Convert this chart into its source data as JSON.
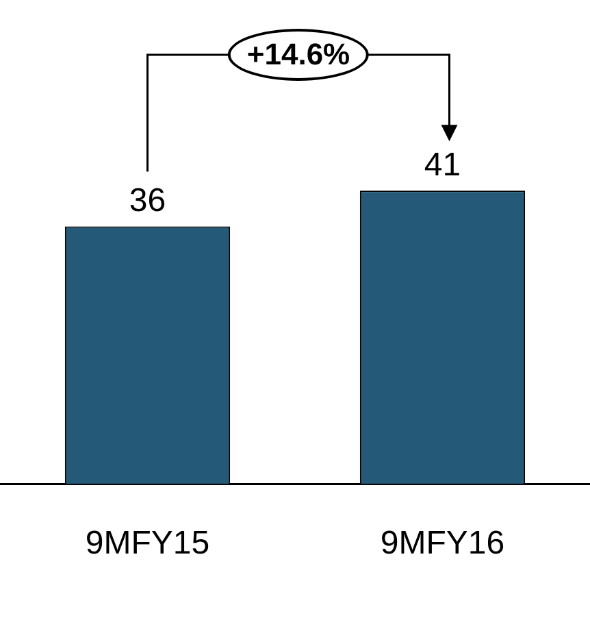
{
  "chart_data": {
    "type": "bar",
    "categories": [
      "9MFY15",
      "9MFY16"
    ],
    "values": [
      36,
      41
    ],
    "color": "#245a78",
    "data_labels": true,
    "tick_labels": "x",
    "grid": false,
    "legend": false,
    "annotations": [
      "+14.6%"
    ]
  }
}
